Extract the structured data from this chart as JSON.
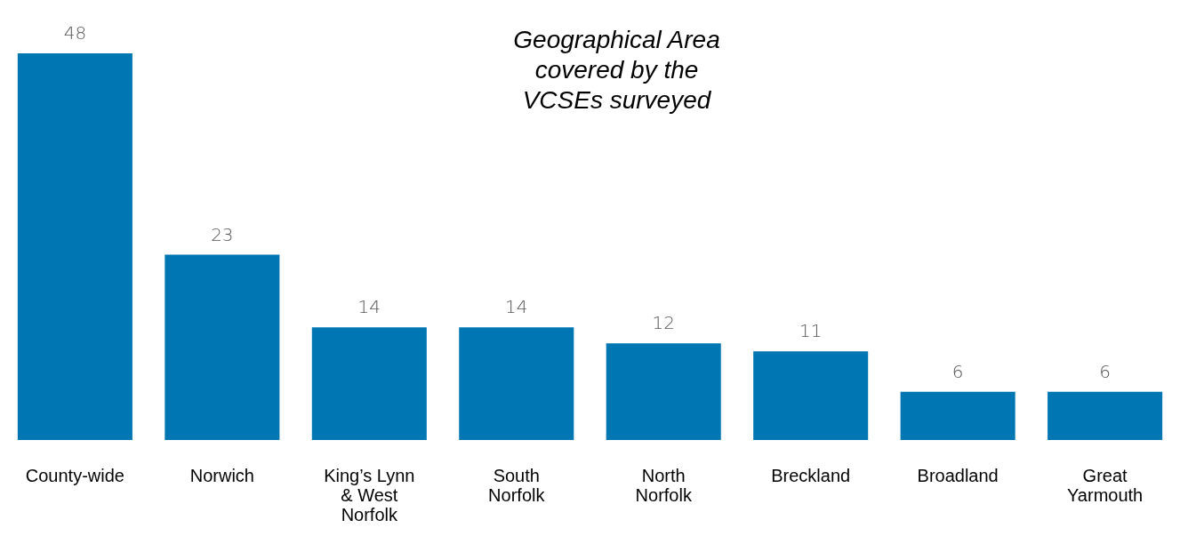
{
  "chart_data": {
    "type": "bar",
    "title": "Geographical Area\ncovered by the\nVCSEs surveyed",
    "categories": [
      "County-wide",
      "Norwich",
      "King’s Lynn & West Norfolk",
      "South Norfolk",
      "North Norfolk",
      "Breckland",
      "Broadland",
      "Great Yarmouth"
    ],
    "values": [
      48,
      23,
      14,
      14,
      12,
      11,
      6,
      6
    ],
    "color": "#0077b3",
    "data_labels": true
  }
}
